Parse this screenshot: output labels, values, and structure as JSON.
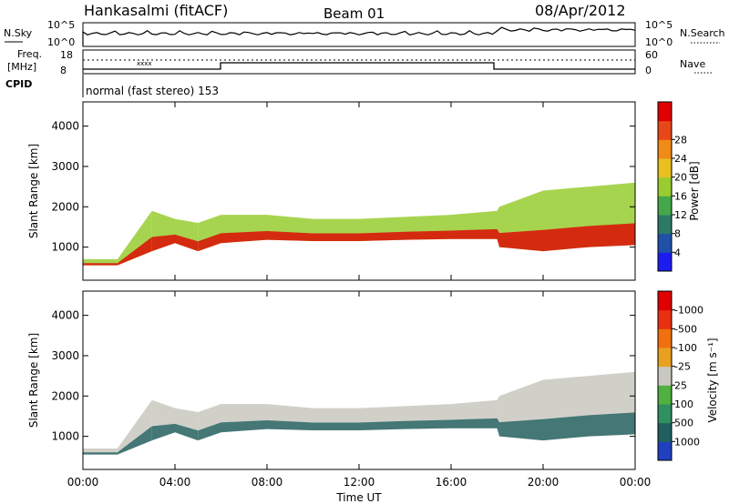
{
  "header": {
    "station": "Hankasalmi (fitACF)",
    "beam": "Beam 01",
    "date": "08/Apr/2012"
  },
  "top_panel": {
    "left_label": "N.Sky",
    "right_label": "N.Search",
    "left_ticks": [
      "10^5",
      "10^0"
    ],
    "right_ticks": [
      "10^5",
      "10^0"
    ]
  },
  "freq_panel": {
    "left_label_line1": "Freq.",
    "left_label_line2": "[MHz]",
    "left_ticks": [
      "18",
      "8"
    ],
    "right_ticks": [
      "60",
      "0"
    ],
    "right_label": "Nave",
    "cpid_label": "CPID",
    "cpid_text": "normal (fast stereo) 153"
  },
  "chart_data": [
    {
      "type": "heatmap",
      "title": "",
      "xlabel": "",
      "ylabel": "Slant Range [km]",
      "x_ticks": [
        "00:00",
        "04:00",
        "08:00",
        "12:00",
        "16:00",
        "20:00",
        "00:00"
      ],
      "y_ticks": [
        1000,
        2000,
        3000,
        4000
      ],
      "ylim": [
        180,
        4600
      ],
      "xlim_hours": [
        0,
        24
      ],
      "colorbar": {
        "label": "Power [dB]",
        "ticks": [
          4,
          8,
          12,
          16,
          20,
          24,
          28
        ],
        "colors": [
          "#1c1cf0",
          "#2050a8",
          "#2c7a66",
          "#44a84a",
          "#98cc30",
          "#e8c020",
          "#f08a18",
          "#e84818",
          "#e00000"
        ]
      },
      "series": [
        {
          "name": "",
          "band_start_hours": [
            0,
            1.5,
            3,
            4,
            5,
            6,
            8,
            10,
            12,
            14,
            16,
            18,
            18.1,
            20,
            22,
            24
          ],
          "band_low_km": [
            550,
            550,
            900,
            1100,
            900,
            1100,
            1180,
            1150,
            1150,
            1180,
            1200,
            1200,
            1000,
            900,
            1000,
            1050
          ],
          "band_high_km": [
            700,
            700,
            1900,
            1700,
            1600,
            1800,
            1800,
            1700,
            1700,
            1750,
            1800,
            1900,
            2000,
            2400,
            2500,
            2600
          ]
        }
      ]
    },
    {
      "type": "heatmap",
      "title": "",
      "xlabel": "Time UT",
      "ylabel": "Slant Range [km]",
      "x_ticks": [
        "00:00",
        "04:00",
        "08:00",
        "12:00",
        "16:00",
        "20:00",
        "00:00"
      ],
      "y_ticks": [
        1000,
        2000,
        3000,
        4000
      ],
      "ylim": [
        180,
        4600
      ],
      "xlim_hours": [
        0,
        24
      ],
      "colorbar": {
        "label": "Velocity [m s⁻¹]",
        "ticks": [
          "1000",
          "500",
          "100",
          "25",
          "-25",
          "-100",
          "-500",
          "-1000"
        ],
        "colors": [
          "#2040c0",
          "#206060",
          "#309060",
          "#50b040",
          "#c8c8c0",
          "#e8a020",
          "#f07010",
          "#e83010",
          "#e00000"
        ]
      },
      "series": [
        {
          "name": "",
          "band_start_hours": [
            0,
            1.5,
            3,
            4,
            5,
            6,
            8,
            10,
            12,
            14,
            16,
            18,
            18.1,
            20,
            22,
            24
          ],
          "band_low_km": [
            550,
            550,
            900,
            1100,
            900,
            1100,
            1180,
            1150,
            1150,
            1180,
            1200,
            1200,
            1000,
            900,
            1000,
            1050
          ],
          "band_high_km": [
            700,
            700,
            1900,
            1700,
            1600,
            1800,
            1800,
            1700,
            1700,
            1750,
            1800,
            1900,
            2000,
            2400,
            2500,
            2600
          ]
        }
      ]
    }
  ],
  "colors": {
    "axis": "#000000",
    "ground_gray": "#c8c8c0"
  }
}
